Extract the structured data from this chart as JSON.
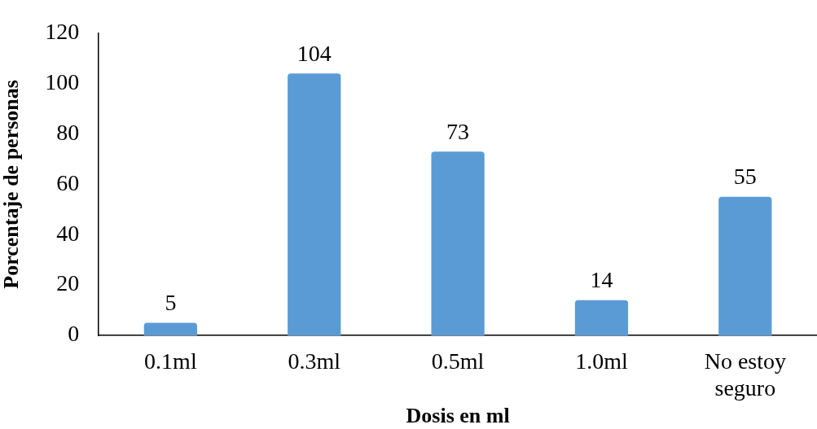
{
  "chart_data": {
    "type": "bar",
    "xlabel": "Dosis en ml",
    "ylabel": "Porcentaje de personas",
    "categories": [
      "0.1ml",
      "0.3ml",
      "0.5ml",
      "1.0ml",
      "No estoy seguro"
    ],
    "values": [
      5,
      104,
      73,
      14,
      55
    ],
    "color": "#5b9bd5",
    "ylim": [
      0,
      120
    ],
    "yticks": [
      0,
      20,
      40,
      60,
      80,
      100,
      120
    ],
    "data_labels": true,
    "grid": false,
    "legend": false
  }
}
